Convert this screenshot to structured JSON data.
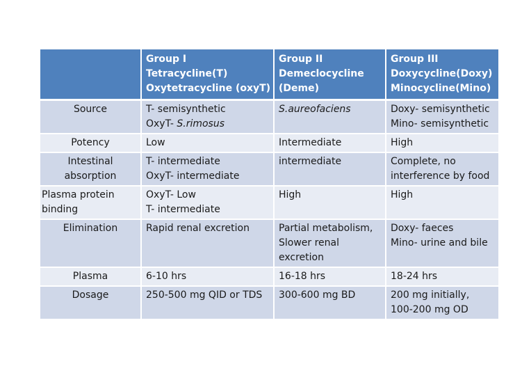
{
  "header": {
    "blank": "",
    "groups": [
      {
        "lines": [
          "Group I",
          "Tetracycline(T)",
          "Oxytetracycline (oxyT)"
        ]
      },
      {
        "lines": [
          "Group II",
          "Demeclocycline",
          "(Deme)"
        ]
      },
      {
        "lines": [
          "Group III",
          "Doxycycline(Doxy)",
          "Minocycline(Mino)"
        ]
      }
    ]
  },
  "rows": [
    {
      "label": [
        "Source"
      ],
      "g1": [
        {
          "a": "T- semisynthetic",
          "b": ""
        },
        {
          "a": "OxyT- ",
          "b": "S.rimosus"
        }
      ],
      "g2": [
        "S.aureofaciens"
      ],
      "g3": [
        "Doxy- semisynthetic",
        "Mino- semisynthetic"
      ]
    },
    {
      "label": [
        "Potency"
      ],
      "g1": [
        "Low"
      ],
      "g2": [
        "Intermediate"
      ],
      "g3": [
        "High"
      ]
    },
    {
      "label": [
        "Intestinal",
        "absorption"
      ],
      "g1": [
        "T- intermediate",
        "OxyT- intermediate"
      ],
      "g2": [
        "intermediate"
      ],
      "g3": [
        "Complete, no",
        "interference by food"
      ]
    },
    {
      "label": [
        "Plasma protein",
        "binding"
      ],
      "g1": [
        "OxyT- Low",
        "T- intermediate"
      ],
      "g2": [
        "High"
      ],
      "g3": [
        "High"
      ]
    },
    {
      "label": [
        "Elimination"
      ],
      "g1": [
        "Rapid renal excretion"
      ],
      "g2": [
        "Partial metabolism,",
        "Slower renal",
        "excretion"
      ],
      "g3": [
        "Doxy- faeces",
        "Mino- urine and bile"
      ]
    },
    {
      "label": [
        "Plasma"
      ],
      "g1": [
        "6-10 hrs"
      ],
      "g2": [
        "16-18 hrs"
      ],
      "g3": [
        "18-24 hrs"
      ]
    },
    {
      "label": [
        "Dosage"
      ],
      "g1": [
        "250-500 mg QID or TDS"
      ],
      "g2": [
        "300-600 mg BD"
      ],
      "g3": [
        "200 mg initially,",
        "100-200 mg OD"
      ]
    }
  ],
  "colors": {
    "header_bg": "#4f81bd",
    "row_dark": "#cfd7e8",
    "row_light": "#e8ecf4"
  }
}
